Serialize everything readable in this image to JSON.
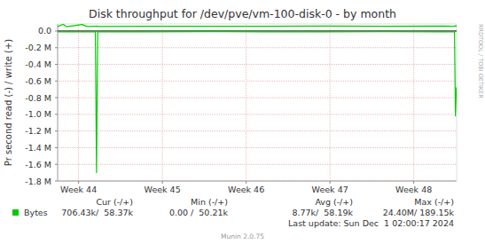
{
  "chart_data": {
    "type": "line",
    "title": "Disk throughput for /dev/pve/vm-100-disk-0 - by month",
    "y_label": "Pr second read (-) / write (+)",
    "x": [
      302.75,
      303.2,
      303.5,
      304.8,
      305.2,
      305.9,
      306.0,
      306.1,
      310,
      315,
      320,
      325,
      330,
      335,
      335.9,
      335.98,
      336.06,
      336.08
    ],
    "series": [
      {
        "name": "Bytes",
        "color": "#00cc00",
        "values": [
          -9000,
          -8000,
          -9500,
          -8000,
          -9000,
          -8000,
          -1700000,
          -8000,
          -8500,
          -7000,
          -9000,
          -9000,
          -8000,
          -9500,
          -8500,
          -1020000,
          -680000,
          -706430
        ]
      },
      {
        "color": "#00cc00",
        "values": [
          55000,
          80000,
          52000,
          78000,
          54000,
          56000,
          60000,
          55000,
          57000,
          56000,
          58000,
          59000,
          58000,
          60000,
          57000,
          62000,
          59000,
          58370
        ]
      }
    ],
    "xlim": [
      302.75,
      336.08
    ],
    "xticks": [
      {
        "value": 304.5,
        "label": "Week 44"
      },
      {
        "value": 311.5,
        "label": "Week 45"
      },
      {
        "value": 318.5,
        "label": "Week 46"
      },
      {
        "value": 325.5,
        "label": "Week 47"
      },
      {
        "value": 332.5,
        "label": "Week 48"
      }
    ],
    "ylim": [
      -1800000,
      85000
    ],
    "yticks": [
      {
        "value": 0,
        "label": "0.0"
      },
      {
        "value": -200000,
        "label": "-0.2 M"
      },
      {
        "value": -400000,
        "label": "-0.4 M"
      },
      {
        "value": -600000,
        "label": "-0.6 M"
      },
      {
        "value": -800000,
        "label": "-0.8 M"
      },
      {
        "value": -1000000,
        "label": "-1.0 M"
      },
      {
        "value": -1200000,
        "label": "-1.2 M"
      },
      {
        "value": -1400000,
        "label": "-1.4 M"
      },
      {
        "value": -1600000,
        "label": "-1.6 M"
      },
      {
        "value": -1800000,
        "label": "-1.8 M"
      }
    ],
    "grid": true,
    "legend": "bottom",
    "stats": {
      "columns": [
        "Cur (-/+)",
        "Min (-/+)",
        "Avg (-/+)",
        "Max (-/+)"
      ],
      "values": [
        "706.43k/  58.37k",
        "0.00 /  50.21k",
        "8.77k/  58.19k",
        "24.40M/ 189.15k"
      ]
    },
    "last_update": "Last update: Sun Dec  1 02:00:17 2024",
    "footer": "Munin 2.0.75",
    "watermark": "RRDTOOL / TOBI OETIKER"
  }
}
